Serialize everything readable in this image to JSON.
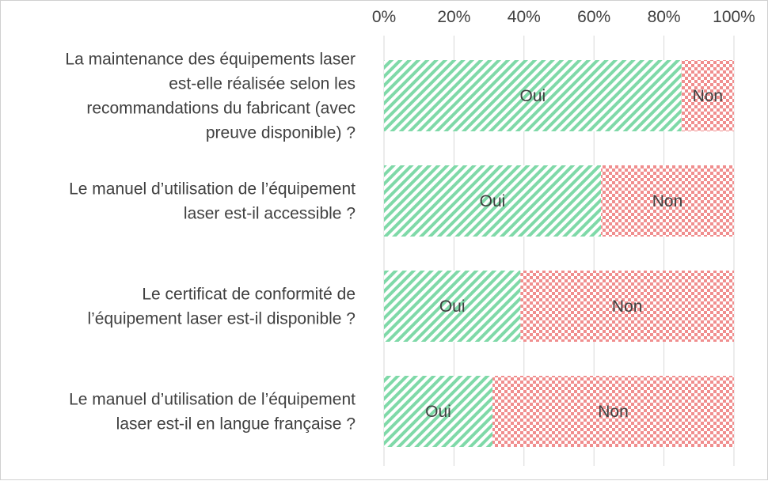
{
  "chart_data": {
    "type": "bar",
    "orientation": "horizontal",
    "stacked": "percent",
    "title": "",
    "xlabel": "",
    "ylabel": "",
    "xlim": [
      0,
      100
    ],
    "x_ticks": [
      "0%",
      "20%",
      "40%",
      "60%",
      "80%",
      "100%"
    ],
    "x_axis_position": "top",
    "grid": "vertical",
    "legend": "none",
    "categories": [
      "La maintenance des équipements laser est-elle réalisée selon les recommandations du fabricant (avec preuve disponible) ?",
      "Le manuel d’utilisation de l’équipement laser est-il accessible ?",
      "Le certificat de conformité de l’équipement laser est-il disponible ?",
      "Le manuel d’utilisation de l’équipement laser est-il en langue française ?"
    ],
    "category_lines": [
      [
        "La maintenance des équipements laser",
        "est-elle réalisée selon les",
        "recommandations du fabricant (avec",
        "preuve disponible) ?"
      ],
      [
        "Le manuel d’utilisation de l’équipement",
        "laser est-il accessible ?"
      ],
      [
        "Le certificat de conformité de",
        "l’équipement laser est-il disponible ?"
      ],
      [
        "Le manuel d’utilisation de l’équipement",
        "laser est-il en langue française ?"
      ]
    ],
    "series": [
      {
        "name": "Oui",
        "values": [
          85,
          62,
          39,
          31
        ]
      },
      {
        "name": "Non",
        "values": [
          15,
          38,
          61,
          69
        ]
      }
    ],
    "colors": {
      "oui_stripe": "#7fd9a8",
      "non_check": "#f08e8e",
      "gridline": "#d9d9d9",
      "text": "#404040"
    }
  }
}
